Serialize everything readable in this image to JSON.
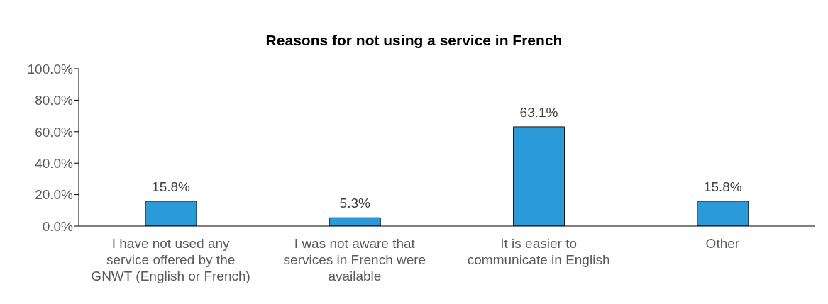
{
  "chart_data": {
    "type": "bar",
    "title": "Reasons for not using a service in French",
    "categories": [
      "I have not used any service offered by the GNWT (English or French)",
      "I was not aware that services in French were available",
      "It is easier to communicate in English",
      "Other"
    ],
    "values": [
      15.8,
      5.3,
      63.1,
      15.8
    ],
    "value_labels": [
      "15.8%",
      "5.3%",
      "63.1%",
      "15.8%"
    ],
    "color": "#2a9ad8",
    "ylim": [
      0,
      100
    ],
    "yticks": [
      {
        "value": 0,
        "label": "0.0%"
      },
      {
        "value": 20,
        "label": "20.0%"
      },
      {
        "value": 40,
        "label": "40.0%"
      },
      {
        "value": 60,
        "label": "60.0%"
      },
      {
        "value": 80,
        "label": "80.0%"
      },
      {
        "value": 100,
        "label": "100.0%"
      }
    ],
    "grid": false,
    "legend": false
  }
}
